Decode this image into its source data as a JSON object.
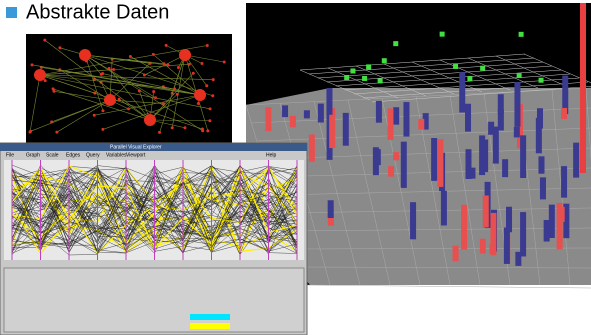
{
  "header": {
    "title": "Abstrakte Daten"
  },
  "window": {
    "title": "Parallel Visual Explorer",
    "menu": [
      "File",
      "Graph",
      "Scale",
      "Edges",
      "Query",
      "Variables",
      "Viewport",
      "Help"
    ]
  }
}
